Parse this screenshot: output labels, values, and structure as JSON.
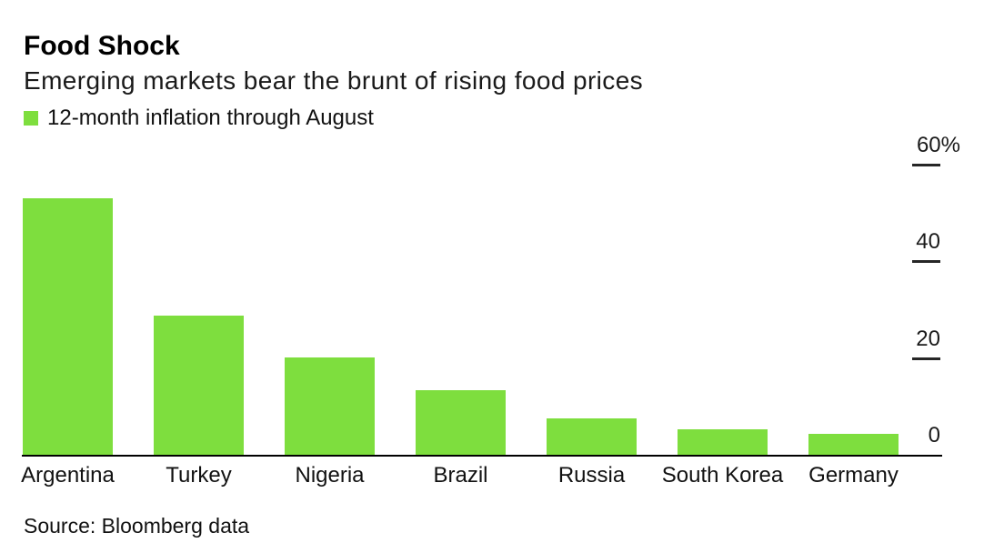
{
  "header": {
    "title": "Food Shock",
    "subtitle": "Emerging markets bear the brunt of rising food prices"
  },
  "legend": {
    "label": "12-month inflation through August",
    "swatch_color": "#7EDE3E"
  },
  "chart_data": {
    "type": "bar",
    "title": "Food Shock",
    "subtitle": "Emerging markets bear the brunt of rising food prices",
    "legend_entries": [
      "12-month inflation through August"
    ],
    "legend_position": "top-left",
    "categories": [
      "Argentina",
      "Turkey",
      "Nigeria",
      "Brazil",
      "Russia",
      "South Korea",
      "Germany"
    ],
    "values": [
      53.2,
      29.0,
      20.3,
      13.5,
      7.7,
      5.4,
      4.6
    ],
    "unit": "%",
    "bar_color": "#7EDE3E",
    "axis_color": "#000000",
    "xlabel": "",
    "ylabel": "",
    "ylim": [
      0,
      60
    ],
    "value_axis_side": "right",
    "grid": false,
    "yticks": [
      {
        "label": "60%",
        "value": 60
      },
      {
        "label": "40",
        "value": 40
      },
      {
        "label": "20",
        "value": 20
      },
      {
        "label": "0",
        "value": 0
      }
    ]
  },
  "source": {
    "text": "Source: Bloomberg data"
  }
}
